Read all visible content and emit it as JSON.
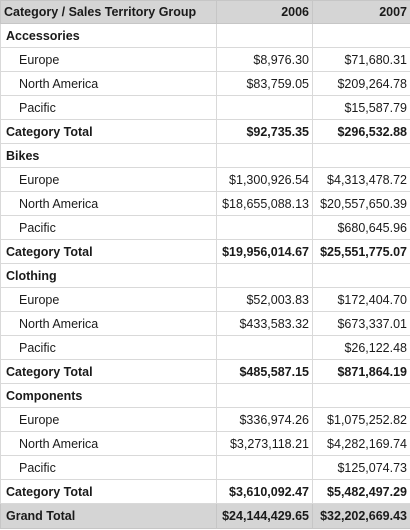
{
  "header": {
    "label": "Category / Sales Territory Group",
    "col_2006": "2006",
    "col_2007": "2007"
  },
  "categories": [
    {
      "name": "Accessories",
      "rows": [
        {
          "label": "Europe",
          "v2006": "$8,976.30",
          "v2007": "$71,680.31"
        },
        {
          "label": "North America",
          "v2006": "$83,759.05",
          "v2007": "$209,264.78"
        },
        {
          "label": "Pacific",
          "v2006": "",
          "v2007": "$15,587.79"
        }
      ],
      "total_label": "Category Total",
      "total_2006": "$92,735.35",
      "total_2007": "$296,532.88"
    },
    {
      "name": "Bikes",
      "rows": [
        {
          "label": "Europe",
          "v2006": "$1,300,926.54",
          "v2007": "$4,313,478.72"
        },
        {
          "label": "North America",
          "v2006": "$18,655,088.13",
          "v2007": "$20,557,650.39"
        },
        {
          "label": "Pacific",
          "v2006": "",
          "v2007": "$680,645.96"
        }
      ],
      "total_label": "Category Total",
      "total_2006": "$19,956,014.67",
      "total_2007": "$25,551,775.07"
    },
    {
      "name": "Clothing",
      "rows": [
        {
          "label": "Europe",
          "v2006": "$52,003.83",
          "v2007": "$172,404.70"
        },
        {
          "label": "North America",
          "v2006": "$433,583.32",
          "v2007": "$673,337.01"
        },
        {
          "label": "Pacific",
          "v2006": "",
          "v2007": "$26,122.48"
        }
      ],
      "total_label": "Category Total",
      "total_2006": "$485,587.15",
      "total_2007": "$871,864.19"
    },
    {
      "name": "Components",
      "rows": [
        {
          "label": "Europe",
          "v2006": "$336,974.26",
          "v2007": "$1,075,252.82"
        },
        {
          "label": "North America",
          "v2006": "$3,273,118.21",
          "v2007": "$4,282,169.74"
        },
        {
          "label": "Pacific",
          "v2006": "",
          "v2007": "$125,074.73"
        }
      ],
      "total_label": "Category Total",
      "total_2006": "$3,610,092.47",
      "total_2007": "$5,482,497.29"
    }
  ],
  "grand_total": {
    "label": "Grand Total",
    "v2006": "$24,144,429.65",
    "v2007": "$32,202,669.43"
  }
}
